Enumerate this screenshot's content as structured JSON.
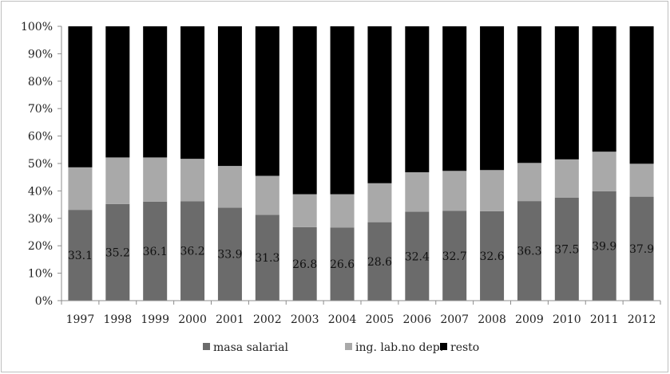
{
  "chart_data": {
    "type": "bar",
    "stacked": "percent",
    "categories": [
      "1997",
      "1998",
      "1999",
      "2000",
      "2001",
      "2002",
      "2003",
      "2004",
      "2005",
      "2006",
      "2007",
      "2008",
      "2009",
      "2010",
      "2011",
      "2012"
    ],
    "series": [
      {
        "name": "masa salarial",
        "color": "#6b6b6b",
        "values": [
          33.1,
          35.2,
          36.1,
          36.2,
          33.9,
          31.3,
          26.8,
          26.6,
          28.6,
          32.4,
          32.7,
          32.6,
          36.3,
          37.5,
          39.9,
          37.9
        ]
      },
      {
        "name": "ing. lab.no dep.",
        "color": "#a9a9a9",
        "values": [
          15.5,
          17.0,
          16.1,
          15.5,
          15.2,
          14.2,
          12.0,
          12.2,
          14.2,
          14.4,
          14.6,
          15.0,
          13.9,
          14.0,
          14.4,
          12.0
        ]
      },
      {
        "name": "resto",
        "color": "#000000",
        "values": [
          51.4,
          47.8,
          47.8,
          48.3,
          50.9,
          54.5,
          61.2,
          61.2,
          57.2,
          53.2,
          52.7,
          52.4,
          49.8,
          48.5,
          45.7,
          50.1
        ]
      }
    ],
    "data_labels": [
      "33.1",
      "35.2",
      "36.1",
      "36.2",
      "33.9",
      "31.3",
      "26.8",
      "26.6",
      "28.6",
      "32.4",
      "32.7",
      "32.6",
      "36.3",
      "37.5",
      "39.9",
      "37.9"
    ],
    "y_ticks": [
      "0%",
      "10%",
      "20%",
      "30%",
      "40%",
      "50%",
      "60%",
      "70%",
      "80%",
      "90%",
      "100%"
    ],
    "ylim": [
      0,
      100
    ],
    "title": "",
    "xlabel": "",
    "ylabel": "",
    "grid": false,
    "legend_position": "bottom"
  }
}
